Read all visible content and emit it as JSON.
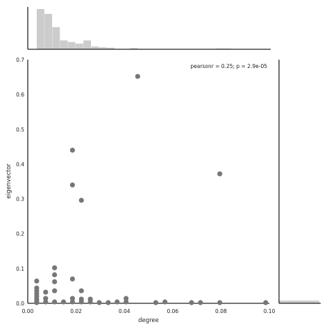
{
  "chart_data": {
    "type": "scatter",
    "title": "",
    "xlabel": "degree",
    "ylabel": "eigenvector",
    "xlim": [
      0.0,
      0.1
    ],
    "ylim": [
      0.0,
      0.7
    ],
    "grid": false,
    "xticks": [
      0.0,
      0.02,
      0.04,
      0.06,
      0.08,
      0.1
    ],
    "xtick_labels": [
      "0.00",
      "0.02",
      "0.04",
      "0.06",
      "0.08",
      "0.10"
    ],
    "yticks": [
      0.0,
      0.1,
      0.2,
      0.3,
      0.4,
      0.5,
      0.6,
      0.7
    ],
    "ytick_labels": [
      "0.0",
      "0.1",
      "0.2",
      "0.3",
      "0.4",
      "0.5",
      "0.6",
      "0.7"
    ],
    "annotation": "pearsonr = 0.25; p = 2.9e-05",
    "point_color": "#777777",
    "hist_color": "#cccccc",
    "points": [
      {
        "x": 0.0037,
        "y": 0.064
      },
      {
        "x": 0.0037,
        "y": 0.044
      },
      {
        "x": 0.0037,
        "y": 0.036
      },
      {
        "x": 0.0037,
        "y": 0.028
      },
      {
        "x": 0.0037,
        "y": 0.02
      },
      {
        "x": 0.0037,
        "y": 0.012
      },
      {
        "x": 0.0037,
        "y": 0.006
      },
      {
        "x": 0.0037,
        "y": 0.002
      },
      {
        "x": 0.0074,
        "y": 0.032
      },
      {
        "x": 0.0074,
        "y": 0.014
      },
      {
        "x": 0.0074,
        "y": 0.004
      },
      {
        "x": 0.0111,
        "y": 0.102
      },
      {
        "x": 0.0111,
        "y": 0.082
      },
      {
        "x": 0.0111,
        "y": 0.062
      },
      {
        "x": 0.0111,
        "y": 0.036
      },
      {
        "x": 0.0111,
        "y": 0.004
      },
      {
        "x": 0.0148,
        "y": 0.004
      },
      {
        "x": 0.0185,
        "y": 0.44
      },
      {
        "x": 0.0185,
        "y": 0.34
      },
      {
        "x": 0.0185,
        "y": 0.07
      },
      {
        "x": 0.0185,
        "y": 0.014
      },
      {
        "x": 0.0185,
        "y": 0.004
      },
      {
        "x": 0.0222,
        "y": 0.296
      },
      {
        "x": 0.0222,
        "y": 0.036
      },
      {
        "x": 0.0222,
        "y": 0.012
      },
      {
        "x": 0.0222,
        "y": 0.004
      },
      {
        "x": 0.0259,
        "y": 0.012
      },
      {
        "x": 0.0259,
        "y": 0.004
      },
      {
        "x": 0.0296,
        "y": 0.002
      },
      {
        "x": 0.0333,
        "y": 0.002
      },
      {
        "x": 0.037,
        "y": 0.004
      },
      {
        "x": 0.0407,
        "y": 0.014
      },
      {
        "x": 0.0407,
        "y": 0.004
      },
      {
        "x": 0.0455,
        "y": 0.652
      },
      {
        "x": 0.053,
        "y": 0.002
      },
      {
        "x": 0.0568,
        "y": 0.004
      },
      {
        "x": 0.0678,
        "y": 0.002
      },
      {
        "x": 0.0715,
        "y": 0.002
      },
      {
        "x": 0.0795,
        "y": 0.372
      },
      {
        "x": 0.0795,
        "y": 0.002
      },
      {
        "x": 0.0985,
        "y": 0.002
      }
    ],
    "marginal_x_hist": {
      "bin_edges": [
        0.0037,
        0.0069,
        0.0101,
        0.0133,
        0.0165,
        0.0197,
        0.0229,
        0.0261,
        0.0293,
        0.0325,
        0.0357,
        0.0389,
        0.0421,
        0.0453,
        0.0485,
        0.0517,
        0.0549,
        0.0581,
        0.0613,
        0.0645,
        0.0677,
        0.0709,
        0.0741,
        0.0773,
        0.0805,
        0.0837
      ],
      "densities": [
        1.0,
        0.88,
        0.55,
        0.22,
        0.18,
        0.14,
        0.22,
        0.07,
        0.05,
        0.04,
        0.0,
        0.0,
        0.03,
        0.0,
        0.0,
        0.0,
        0.0,
        0.0,
        0.0,
        0.0,
        0.0,
        0.0,
        0.0,
        0.02,
        0.02
      ]
    },
    "marginal_y_hist": {
      "bin_edges": [
        0.0,
        0.0333
      ],
      "densities": [
        1.0
      ]
    }
  }
}
